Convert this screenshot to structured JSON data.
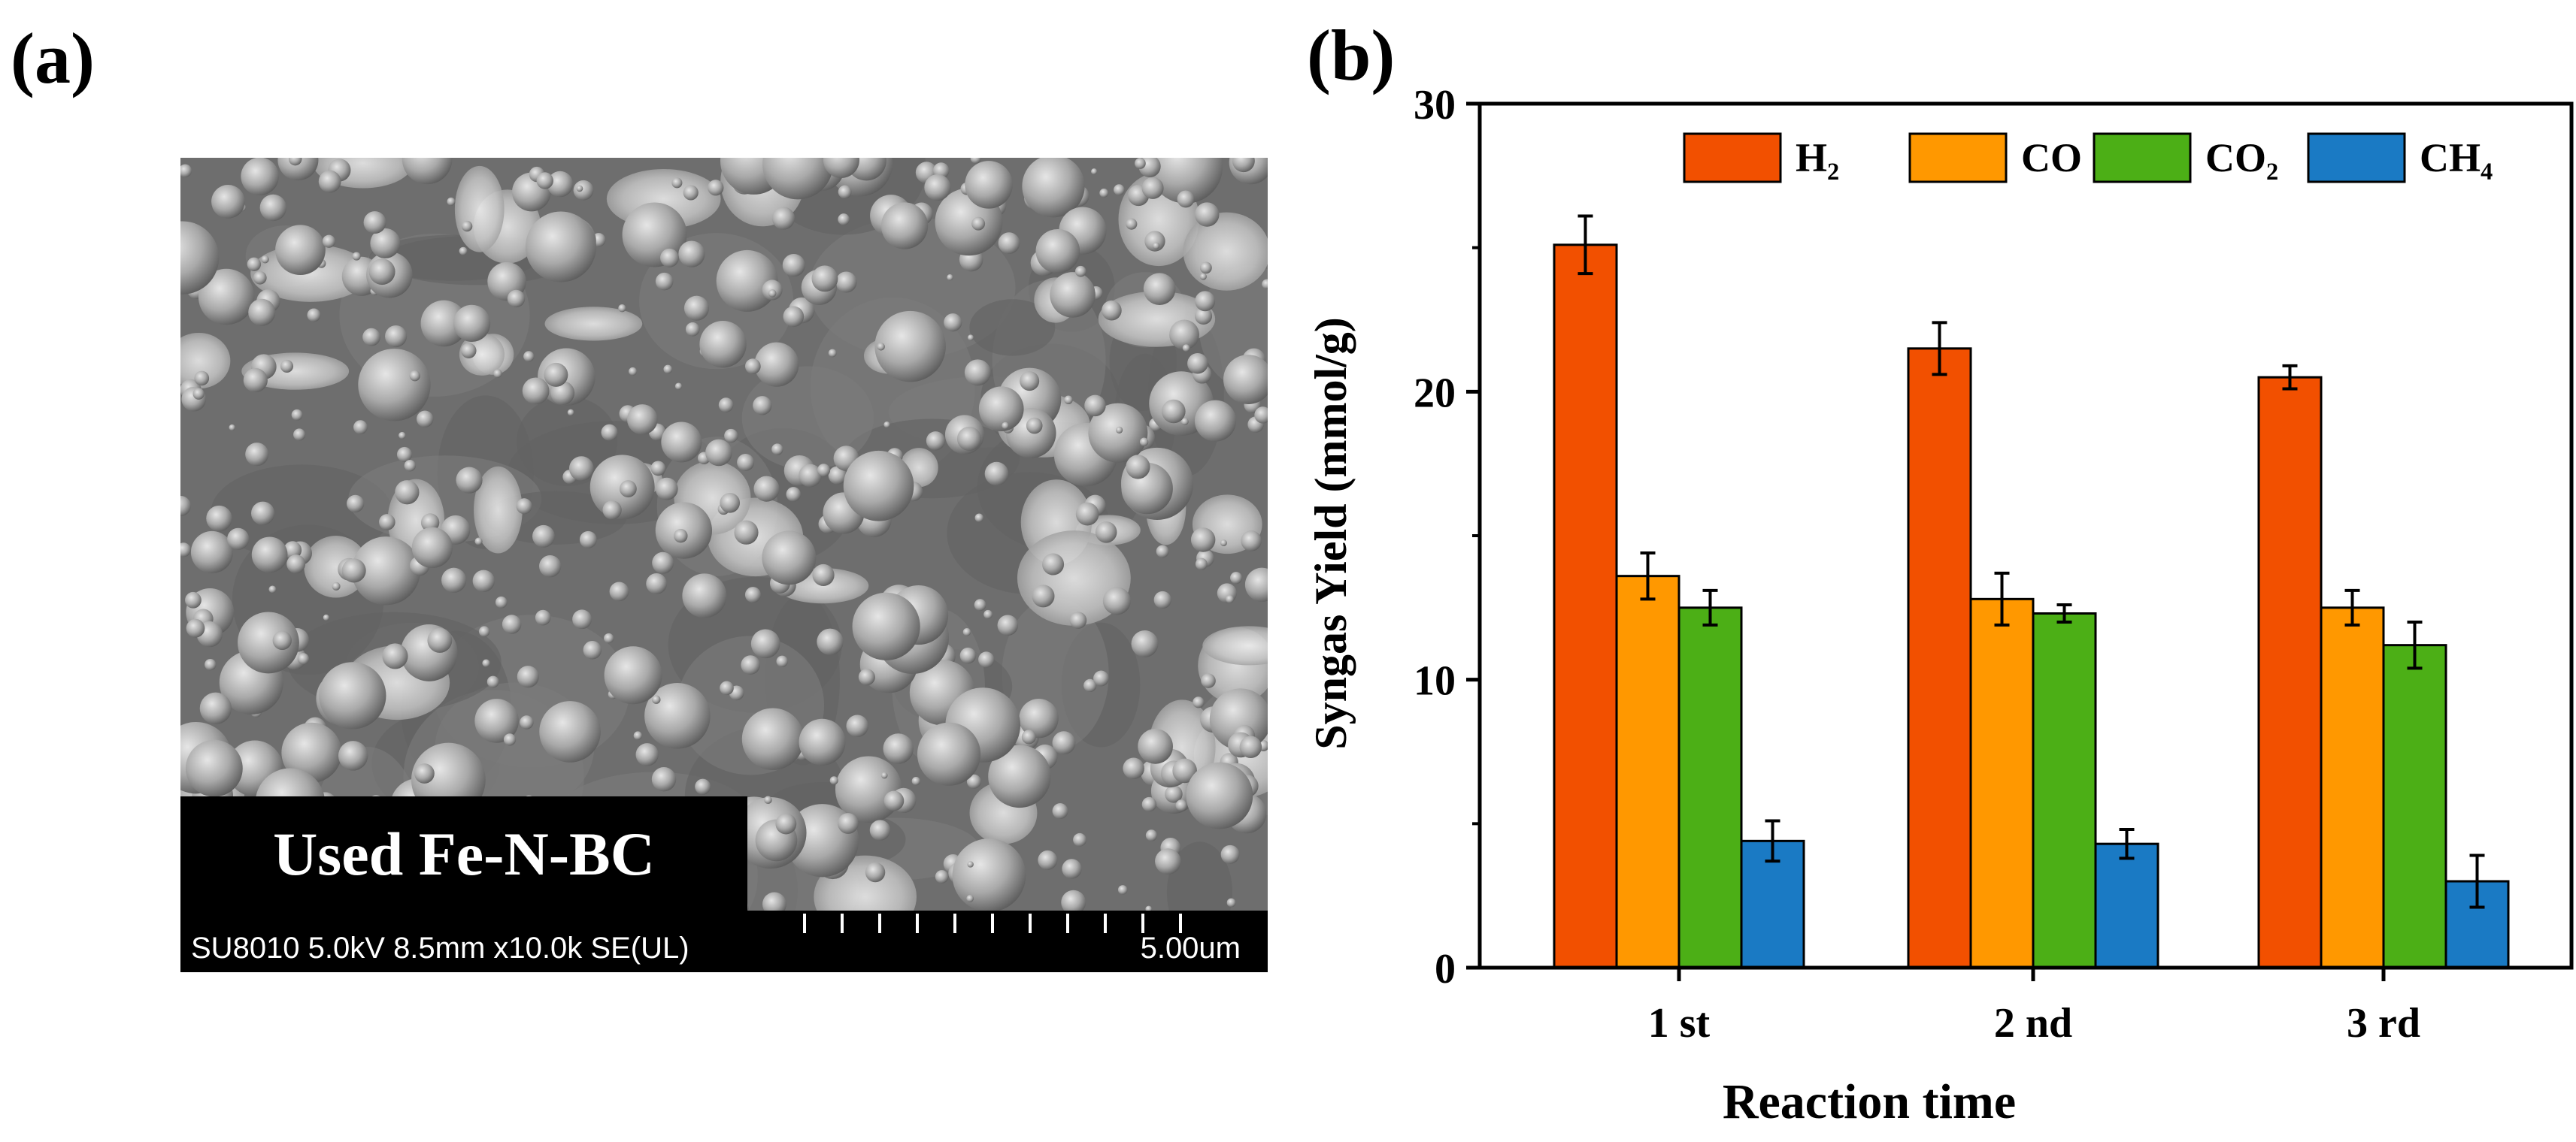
{
  "panel_labels": {
    "a": "(a)",
    "b": "(b)"
  },
  "sem": {
    "sample_label": "Used Fe-N-BC",
    "info": "SU8010 5.0kV 8.5mm x10.0k SE(UL)",
    "scale_label": "5.00um"
  },
  "chart_data": {
    "type": "bar",
    "xlabel": "Reaction time",
    "ylabel": "Syngas Yield (mmol/g)",
    "categories": [
      "1 st",
      "2 nd",
      "3 rd"
    ],
    "ylim": [
      0,
      30
    ],
    "yticks": [
      0,
      10,
      20,
      30
    ],
    "grid": false,
    "legend_position": "top",
    "series": [
      {
        "name": "H₂",
        "color": "#f25000",
        "values": [
          25.1,
          21.5,
          20.5
        ],
        "errors": [
          1.0,
          0.9,
          0.4
        ]
      },
      {
        "name": "CO",
        "color": "#ff9800",
        "values": [
          13.6,
          12.8,
          12.5
        ],
        "errors": [
          0.8,
          0.9,
          0.6
        ]
      },
      {
        "name": "CO₂",
        "color": "#4caf16",
        "values": [
          12.5,
          12.3,
          11.2
        ],
        "errors": [
          0.6,
          0.3,
          0.8
        ]
      },
      {
        "name": "CH₄",
        "color": "#1a7ac4",
        "values": [
          4.4,
          4.3,
          3.0
        ],
        "errors": [
          0.7,
          0.5,
          0.9
        ]
      }
    ]
  }
}
